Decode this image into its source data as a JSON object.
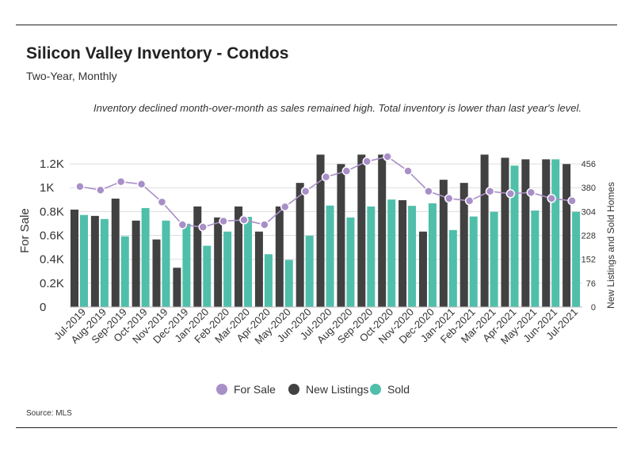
{
  "title": "Silicon Valley Inventory - Condos",
  "subtitle": "Two-Year, Monthly",
  "annotation": "Inventory declined month-over-month as sales remained high. Total inventory is lower than last year's level.",
  "source": "Source:  MLS",
  "colors": {
    "for_sale": "#a98fc8",
    "new_listings": "#414141",
    "sold": "#4fbfaa",
    "grid": "#dddddd"
  },
  "chart_data": {
    "type": "bar",
    "categories": [
      "Jul-2019",
      "Aug-2019",
      "Sep-2019",
      "Oct-2019",
      "Nov-2019",
      "Dec-2019",
      "Jan-2020",
      "Feb-2020",
      "Mar-2020",
      "Apr-2020",
      "May-2020",
      "Jun-2020",
      "Jul-2020",
      "Aug-2020",
      "Sep-2020",
      "Oct-2020",
      "Nov-2020",
      "Dec-2020",
      "Jan-2021",
      "Feb-2021",
      "Mar-2021",
      "Apr-2021",
      "May-2021",
      "Jun-2021",
      "Jul-2021"
    ],
    "y_left": {
      "label": "For Sale",
      "ticks": [
        {
          "value": 0,
          "label": "0"
        },
        {
          "value": 200,
          "label": "0.2K"
        },
        {
          "value": 400,
          "label": "0.4K"
        },
        {
          "value": 600,
          "label": "0.6K"
        },
        {
          "value": 800,
          "label": "0.8K"
        },
        {
          "value": 1000,
          "label": "1K"
        },
        {
          "value": 1200,
          "label": "1.2K"
        }
      ],
      "ylim": [
        0,
        1280
      ]
    },
    "y_right": {
      "label": "New Listings and Sold Homes",
      "ticks": [
        {
          "value": 0,
          "label": "0"
        },
        {
          "value": 76,
          "label": "76"
        },
        {
          "value": 152,
          "label": "152"
        },
        {
          "value": 228,
          "label": "228"
        },
        {
          "value": 304,
          "label": "304"
        },
        {
          "value": 380,
          "label": "380"
        },
        {
          "value": 456,
          "label": "456"
        }
      ],
      "ylim": [
        0,
        486
      ]
    },
    "series": [
      {
        "name": "For Sale",
        "type": "line",
        "axis": "left",
        "values": [
          1010,
          980,
          1050,
          1030,
          880,
          690,
          670,
          720,
          730,
          690,
          840,
          970,
          1090,
          1140,
          1220,
          1260,
          1140,
          970,
          910,
          890,
          970,
          950,
          960,
          910,
          890
        ]
      },
      {
        "name": "New Listings",
        "type": "bar",
        "axis": "right",
        "values": [
          310,
          290,
          345,
          275,
          215,
          125,
          320,
          285,
          320,
          240,
          320,
          395,
          485,
          455,
          485,
          485,
          340,
          240,
          405,
          395,
          485,
          475,
          470,
          470,
          455
        ]
      },
      {
        "name": "Sold",
        "type": "bar",
        "axis": "right",
        "values": [
          293,
          280,
          225,
          315,
          275,
          265,
          195,
          240,
          287,
          168,
          150,
          227,
          323,
          285,
          320,
          342,
          322,
          330,
          245,
          288,
          303,
          450,
          307,
          470,
          303
        ]
      }
    ],
    "legend_position": "bottom-center",
    "grid": true
  },
  "legend": [
    {
      "key": "for_sale",
      "label": "For Sale",
      "shape": "circle"
    },
    {
      "key": "new_listings",
      "label": "New Listings",
      "shape": "circle"
    },
    {
      "key": "sold",
      "label": "Sold",
      "shape": "circle"
    }
  ]
}
